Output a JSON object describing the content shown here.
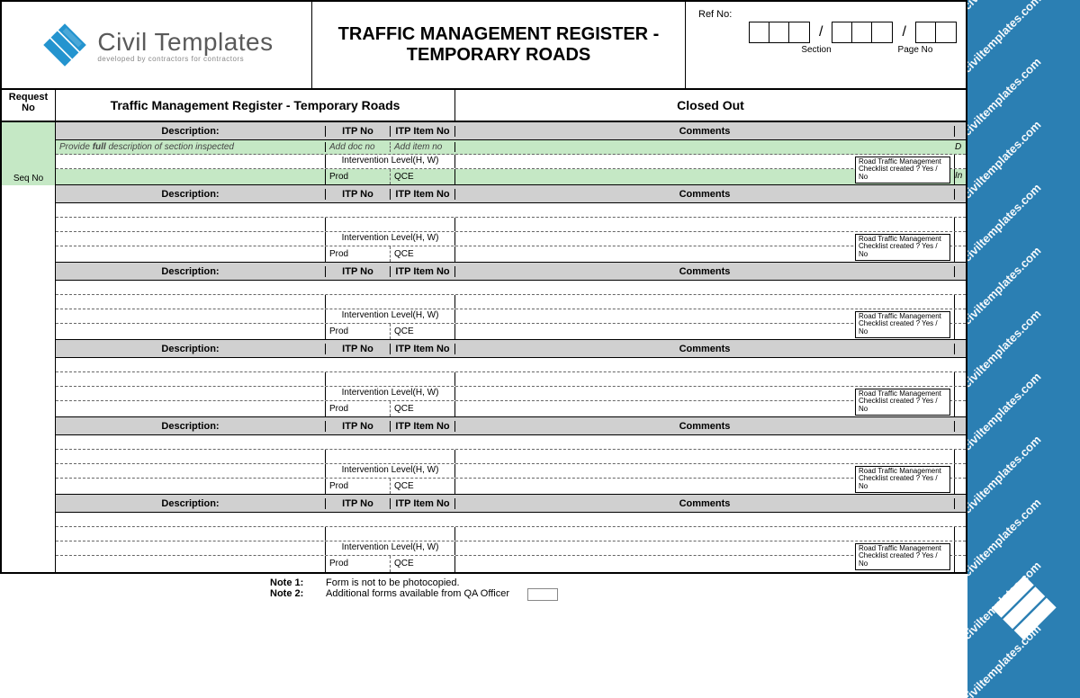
{
  "header": {
    "logo_text": "Civil Templates",
    "logo_sub": "developed by contractors for contractors",
    "title": "TRAFFIC MANAGEMENT REGISTER - TEMPORARY ROADS",
    "ref_label": "Ref No:",
    "section_label": "Section",
    "page_label": "Page No"
  },
  "band": {
    "request_no": "Request No",
    "mid": "Traffic Management Register - Temporary Roads",
    "right": "Closed Out"
  },
  "col": {
    "description": "Description:",
    "itp_no": "ITP No",
    "itp_item_no": "ITP Item No",
    "comments": "Comments",
    "seq_no": "Seq No",
    "ilv": "Intervention Level(H, W)",
    "prod": "Prod",
    "qce": "QCE"
  },
  "hints": {
    "desc": "Provide full description of section inspected",
    "doc": "Add doc no",
    "item": "Add item no",
    "d": "D",
    "in": "In"
  },
  "checklist": "Road Traffic Management Checklist created ?  Yes / No",
  "notes": {
    "n1_label": "Note 1:",
    "n1_text": "Form is not to be photocopied.",
    "n2_label": "Note 2:",
    "n2_text": "Additional forms available from QA Officer"
  },
  "watermark": "civiltemplates.com",
  "colors": {
    "brand_blue": "#2b7fb3",
    "logo_blue": "#2494cf",
    "row_green": "#c5e8c5",
    "header_grey": "#d0d0d0"
  },
  "blocks_count": 6
}
